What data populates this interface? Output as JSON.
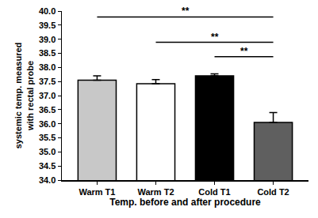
{
  "chart_data": {
    "type": "bar",
    "categories": [
      "Warm T1",
      "Warm T2",
      "Cold T1",
      "Cold T2"
    ],
    "values": [
      37.55,
      37.42,
      37.7,
      36.05
    ],
    "errors": [
      0.15,
      0.15,
      0.07,
      0.35
    ],
    "colors": [
      "#c8c8c8",
      "#ffffff",
      "#000000",
      "#5f5f5f"
    ],
    "x_label": "Temp. before and after procedure",
    "y_label": "systemic temp. measured\nwith rectal probe",
    "ylim": [
      34.0,
      40.0
    ],
    "yticks": [
      {
        "value": 34.0,
        "label": "34.0"
      },
      {
        "value": 34.5,
        "label": "34.5"
      },
      {
        "value": 35.0,
        "label": "35.0"
      },
      {
        "value": 35.5,
        "label": "35.5"
      },
      {
        "value": 36.0,
        "label": "36.0"
      },
      {
        "value": 36.5,
        "label": "36.5"
      },
      {
        "value": 37.0,
        "label": "37.0"
      },
      {
        "value": 37.5,
        "label": "37.5"
      },
      {
        "value": 38.0,
        "label": "38.0"
      },
      {
        "value": 38.5,
        "label": "38.5"
      },
      {
        "value": 39.0,
        "label": "39.0"
      },
      {
        "value": 39.5,
        "label": "39.5"
      },
      {
        "value": 40.0,
        "label": "40.0"
      }
    ],
    "grid": false,
    "annotations": [
      {
        "from": "Warm T1",
        "to": "Cold T2",
        "text": "**"
      },
      {
        "from": "Warm T2",
        "to": "Cold T2",
        "text": "**"
      },
      {
        "from": "Cold T1",
        "to": "Cold T2",
        "text": "**"
      }
    ]
  }
}
